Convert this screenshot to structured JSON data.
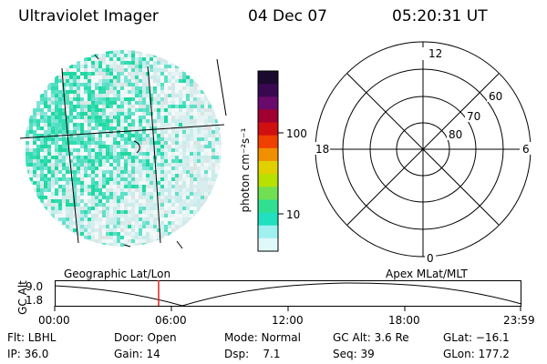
{
  "header": {
    "instrument": "Ultraviolet Imager",
    "date": "04 Dec 07",
    "time": "05:20:31 UT"
  },
  "colorbar": {
    "unit_label": "photon cm⁻²s⁻¹",
    "ticks": [
      "100",
      "10"
    ],
    "scale": "log",
    "colors": [
      "#1a0a2e",
      "#3a0850",
      "#6a0a6a",
      "#a00030",
      "#d01010",
      "#f04000",
      "#f09000",
      "#e0d000",
      "#b8e000",
      "#70e050",
      "#30e090",
      "#20e0c0",
      "#a0f0f0",
      "#e0f8f8"
    ]
  },
  "polar_plot": {
    "labels": {
      "top": "12",
      "bottom": "0",
      "left": "18",
      "right": "6",
      "ring_60": "60",
      "ring_70": "70",
      "ring_80": "80"
    }
  },
  "timeline": {
    "y_axis_label": "GC Alt",
    "y_ticks": [
      "9.0",
      "1.8"
    ],
    "left_caption": "Geographic Lat/Lon",
    "right_caption": "Apex MLat/MLT",
    "x_ticks": [
      "00:00",
      "06:00",
      "12:00",
      "18:00",
      "23:59"
    ],
    "cursor_time": "05:20",
    "cursor_color": "#e02020"
  },
  "info": {
    "row1": {
      "flt": "Flt: LBHL",
      "door": "Door: Open",
      "mode": "Mode: Normal",
      "gcalt": "GC Alt: 3.6 Re",
      "glat": "GLat: −16.1"
    },
    "row2": {
      "ip": "IP: 36.0",
      "gain": "Gain: 14",
      "dsp": "Dsp:    7.1",
      "seq": "Seq: 39",
      "glon": "GLon: 177.2"
    }
  }
}
